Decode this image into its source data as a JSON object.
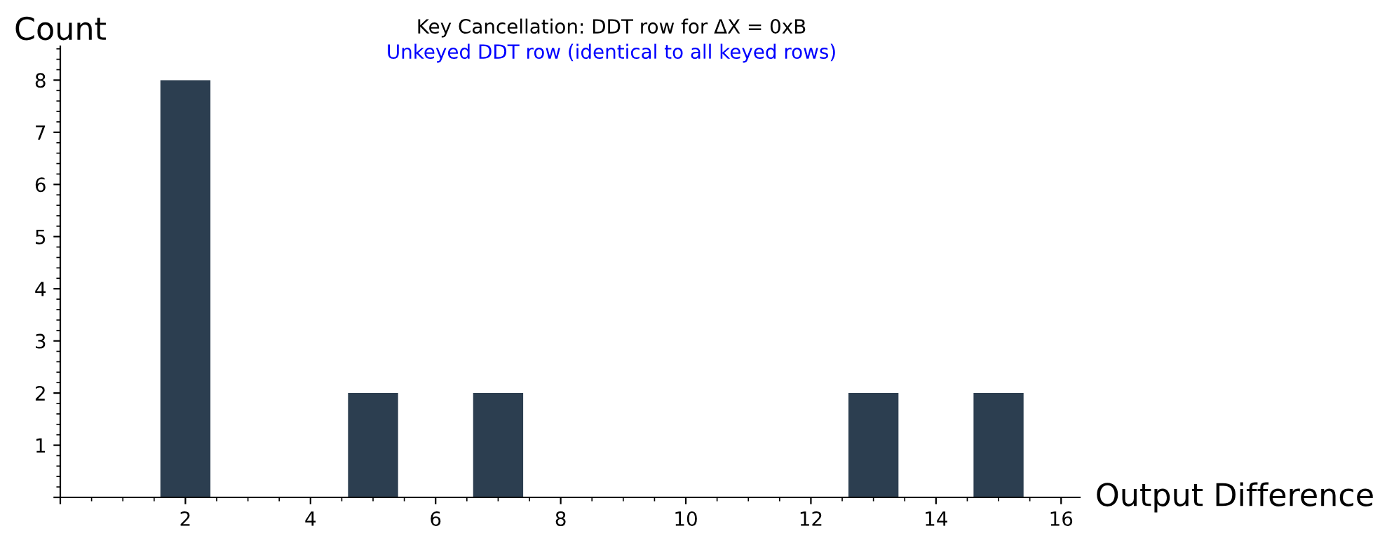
{
  "chart_data": {
    "type": "bar",
    "title": "Key Cancellation: DDT row for ΔX = 0xB",
    "subtitle": "Unkeyed DDT row (identical to all keyed rows)",
    "xlabel": "Output Difference",
    "ylabel": "Count",
    "x": [
      2,
      5,
      7,
      13,
      15
    ],
    "values": [
      8,
      2,
      2,
      2,
      2
    ],
    "color": "#2c3e50",
    "xlim": [
      0,
      16.3
    ],
    "xticks": [
      {
        "value": 0,
        "label": null
      },
      2,
      4,
      6,
      8,
      10,
      12,
      14,
      16
    ],
    "ylim": [
      0,
      8.65
    ],
    "yticks": [
      {
        "value": 0,
        "label": null
      },
      1,
      2,
      3,
      4,
      5,
      6,
      7,
      8
    ],
    "grid": false
  }
}
